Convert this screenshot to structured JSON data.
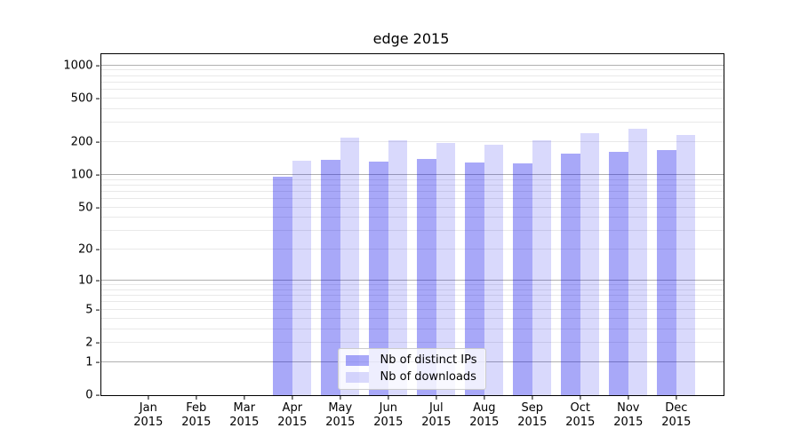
{
  "title": "edge 2015",
  "colors": {
    "bar_distinct_ips": "rgba(0,0,235,0.34)",
    "bar_downloads": "rgba(0,0,235,0.15)",
    "grid_major": "#b0b0b0",
    "grid_minor": "#e9e9e9",
    "axis": "#000000"
  },
  "legend": {
    "items": [
      {
        "label": "Nb of distinct IPs"
      },
      {
        "label": "Nb of downloads"
      }
    ]
  },
  "chart_data": {
    "type": "bar",
    "title": "edge 2015",
    "categories": [
      "Jan",
      "Feb",
      "Mar",
      "Apr",
      "May",
      "Jun",
      "Jul",
      "Aug",
      "Sep",
      "Oct",
      "Nov",
      "Dec"
    ],
    "year_label": "2015",
    "series": [
      {
        "name": "Nb of distinct IPs",
        "color": "rgba(0,0,235,0.34)",
        "values": [
          0,
          0,
          0,
          96,
          138,
          133,
          141,
          131,
          128,
          158,
          163,
          168
        ]
      },
      {
        "name": "Nb of downloads",
        "color": "rgba(0,0,235,0.15)",
        "values": [
          0,
          0,
          0,
          134,
          219,
          209,
          198,
          189,
          209,
          240,
          267,
          231
        ]
      }
    ],
    "xlabel": "",
    "ylabel": "",
    "yscale": "log10(value+1)",
    "yticks": [
      0,
      1,
      2,
      5,
      10,
      20,
      50,
      100,
      200,
      500,
      1000
    ],
    "ytick_major_lines": [
      1,
      10,
      100,
      1000
    ],
    "ylim": [
      0,
      1279
    ],
    "grid": "horizontal major+minor",
    "legend_position": "lower center"
  }
}
